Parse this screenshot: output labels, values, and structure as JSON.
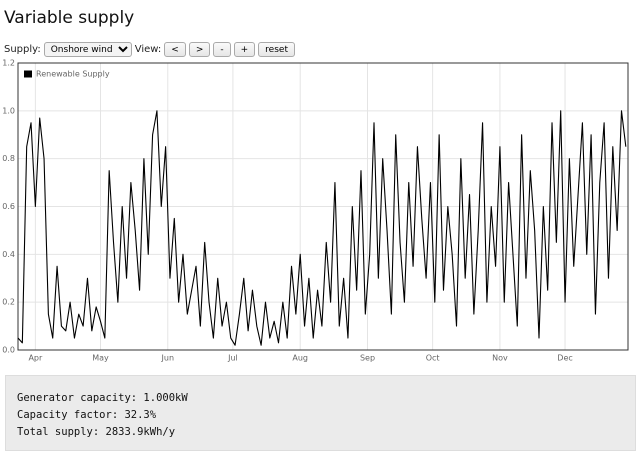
{
  "header": {
    "title": "Variable supply"
  },
  "controls": {
    "supply_label": "Supply:",
    "supply_value": "Onshore wind",
    "view_label": "View:",
    "buttons": [
      "<",
      ">",
      "-",
      "+",
      "reset"
    ]
  },
  "chart_data": {
    "type": "line",
    "xlim": [
      0,
      281
    ],
    "xticks": [
      {
        "value": 8,
        "label": "Apr"
      },
      {
        "value": 38,
        "label": "May"
      },
      {
        "value": 69,
        "label": "Jun"
      },
      {
        "value": 99,
        "label": "Jul"
      },
      {
        "value": 130,
        "label": "Aug"
      },
      {
        "value": 161,
        "label": "Sep"
      },
      {
        "value": 191,
        "label": "Oct"
      },
      {
        "value": 222,
        "label": "Nov"
      },
      {
        "value": 252,
        "label": "Dec"
      }
    ],
    "ylim": [
      0,
      1.2
    ],
    "yticks": [
      {
        "value": 0,
        "label": "0.0"
      },
      0.2,
      0.4,
      0.6,
      0.8,
      {
        "value": 1,
        "label": "1.0"
      },
      1.2
    ],
    "grid": true,
    "legend": "top-left",
    "x": [
      0,
      2,
      4,
      6,
      8,
      10,
      12,
      14,
      16,
      18,
      20,
      22,
      24,
      26,
      28,
      30,
      32,
      34,
      36,
      38,
      40,
      42,
      44,
      46,
      48,
      50,
      52,
      54,
      56,
      58,
      60,
      62,
      64,
      66,
      68,
      70,
      72,
      74,
      76,
      78,
      80,
      82,
      84,
      86,
      88,
      90,
      92,
      94,
      96,
      98,
      100,
      102,
      104,
      106,
      108,
      110,
      112,
      114,
      116,
      118,
      120,
      122,
      124,
      126,
      128,
      130,
      132,
      134,
      136,
      138,
      140,
      142,
      144,
      146,
      148,
      150,
      152,
      154,
      156,
      158,
      160,
      162,
      164,
      166,
      168,
      170,
      172,
      174,
      176,
      178,
      180,
      182,
      184,
      186,
      188,
      190,
      192,
      194,
      196,
      198,
      200,
      202,
      204,
      206,
      208,
      210,
      212,
      214,
      216,
      218,
      220,
      222,
      224,
      226,
      228,
      230,
      232,
      234,
      236,
      238,
      240,
      242,
      244,
      246,
      248,
      250,
      252,
      254,
      256,
      258,
      260,
      262,
      264,
      266,
      268,
      270,
      272,
      274,
      276,
      278,
      280
    ],
    "series": [
      {
        "name": "Renewable Supply",
        "color": "#000000",
        "values": [
          0.05,
          0.03,
          0.85,
          0.95,
          0.6,
          0.97,
          0.8,
          0.15,
          0.05,
          0.35,
          0.1,
          0.08,
          0.2,
          0.05,
          0.15,
          0.1,
          0.3,
          0.08,
          0.18,
          0.12,
          0.05,
          0.75,
          0.45,
          0.2,
          0.6,
          0.3,
          0.7,
          0.5,
          0.25,
          0.8,
          0.4,
          0.9,
          1.0,
          0.6,
          0.85,
          0.3,
          0.55,
          0.2,
          0.4,
          0.15,
          0.25,
          0.35,
          0.1,
          0.45,
          0.2,
          0.05,
          0.3,
          0.1,
          0.2,
          0.05,
          0.02,
          0.15,
          0.3,
          0.08,
          0.25,
          0.1,
          0.02,
          0.2,
          0.05,
          0.12,
          0.03,
          0.2,
          0.05,
          0.35,
          0.15,
          0.4,
          0.1,
          0.3,
          0.05,
          0.25,
          0.1,
          0.45,
          0.2,
          0.7,
          0.1,
          0.3,
          0.05,
          0.6,
          0.25,
          0.75,
          0.15,
          0.4,
          0.95,
          0.3,
          0.8,
          0.5,
          0.15,
          0.9,
          0.45,
          0.2,
          0.7,
          0.35,
          0.85,
          0.55,
          0.3,
          0.7,
          0.2,
          0.9,
          0.25,
          0.6,
          0.4,
          0.1,
          0.8,
          0.3,
          0.65,
          0.15,
          0.5,
          0.95,
          0.2,
          0.6,
          0.35,
          0.85,
          0.2,
          0.7,
          0.4,
          0.1,
          0.9,
          0.3,
          0.75,
          0.5,
          0.05,
          0.6,
          0.25,
          0.95,
          0.45,
          1.0,
          0.2,
          0.8,
          0.35,
          0.65,
          0.95,
          0.4,
          0.9,
          0.15,
          0.7,
          0.95,
          0.3,
          0.85,
          0.5,
          1.0,
          0.85
        ]
      }
    ]
  },
  "info": {
    "lines": [
      "Generator capacity: 1.000kW",
      "Capacity factor: 32.3%",
      "Total supply: 2833.9kWh/y"
    ]
  }
}
